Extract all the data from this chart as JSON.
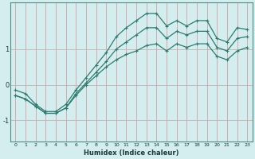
{
  "xlabel": "Humidex (Indice chaleur)",
  "bg_color": "#d4eef0",
  "line_color": "#2d7b6e",
  "xlim": [
    -0.5,
    23.5
  ],
  "ylim": [
    -1.6,
    2.3
  ],
  "yticks": [
    -1,
    0,
    1
  ],
  "xticks": [
    0,
    1,
    2,
    3,
    4,
    5,
    6,
    7,
    8,
    9,
    10,
    11,
    12,
    13,
    14,
    15,
    16,
    17,
    18,
    19,
    20,
    21,
    22,
    23
  ],
  "line1_x": [
    0,
    1,
    2,
    3,
    4,
    5,
    6,
    7,
    8,
    9,
    10,
    11,
    12,
    13,
    14,
    15,
    16,
    17,
    18,
    19,
    20,
    21,
    22,
    23
  ],
  "line1_y": [
    -0.15,
    -0.25,
    -0.55,
    -0.75,
    -0.75,
    -0.55,
    -0.15,
    0.2,
    0.55,
    0.9,
    1.35,
    1.6,
    1.8,
    2.0,
    2.0,
    1.65,
    1.8,
    1.65,
    1.8,
    1.8,
    1.3,
    1.2,
    1.6,
    1.55
  ],
  "line2_x": [
    0,
    1,
    2,
    3,
    4,
    5,
    6,
    7,
    8,
    9,
    10,
    11,
    12,
    13,
    14,
    15,
    16,
    17,
    18,
    19,
    20,
    21,
    22,
    23
  ],
  "line2_y": [
    -0.3,
    -0.4,
    -0.6,
    -0.8,
    -0.8,
    -0.65,
    -0.25,
    0.05,
    0.35,
    0.65,
    1.0,
    1.2,
    1.4,
    1.6,
    1.6,
    1.3,
    1.5,
    1.4,
    1.5,
    1.5,
    1.05,
    0.95,
    1.3,
    1.35
  ],
  "line3_x": [
    0,
    1,
    2,
    3,
    4,
    5,
    6,
    7,
    8,
    9,
    10,
    11,
    12,
    13,
    14,
    15,
    16,
    17,
    18,
    19,
    20,
    21,
    22,
    23
  ],
  "line3_y": [
    -0.3,
    -0.4,
    -0.6,
    -0.8,
    -0.8,
    -0.65,
    -0.3,
    0.0,
    0.25,
    0.5,
    0.7,
    0.85,
    0.95,
    1.1,
    1.15,
    0.95,
    1.15,
    1.05,
    1.15,
    1.15,
    0.8,
    0.7,
    0.95,
    1.05
  ]
}
